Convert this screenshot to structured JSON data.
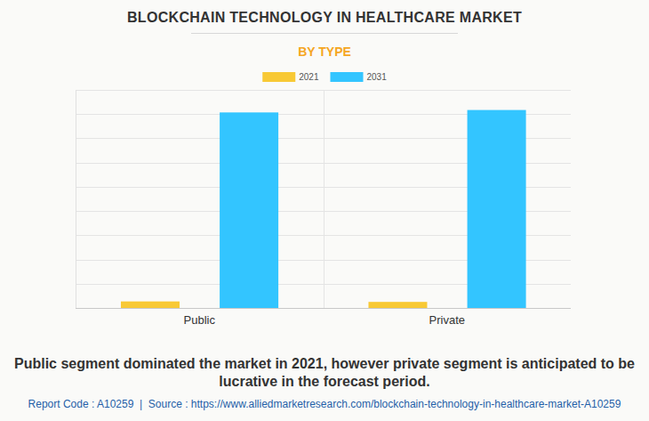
{
  "chart_data": {
    "type": "bar",
    "title": "BLOCKCHAIN TECHNOLOGY IN HEALTHCARE MARKET",
    "subtitle": "BY TYPE",
    "categories": [
      "Public",
      "Private"
    ],
    "series": [
      {
        "name": "2021",
        "color": "#f8c935",
        "values": [
          0.27,
          0.25
        ]
      },
      {
        "name": "2031",
        "color": "#33c5ff",
        "values": [
          8.07,
          8.17
        ]
      }
    ],
    "ylim": [
      0,
      9
    ],
    "yticks": [
      0,
      1,
      2,
      3,
      4,
      5,
      6,
      7,
      8,
      9
    ],
    "grid": true,
    "tick_labels": "x",
    "legend": "top",
    "caption": "Public segment dominated the market in 2021, however private segment is anticipated to be lucrative in the forecast period.",
    "footer": "Report Code : A10259  |  Source : https://www.alliedmarketresearch.com/blockchain-technology-in-healthcare-market-A10259"
  }
}
